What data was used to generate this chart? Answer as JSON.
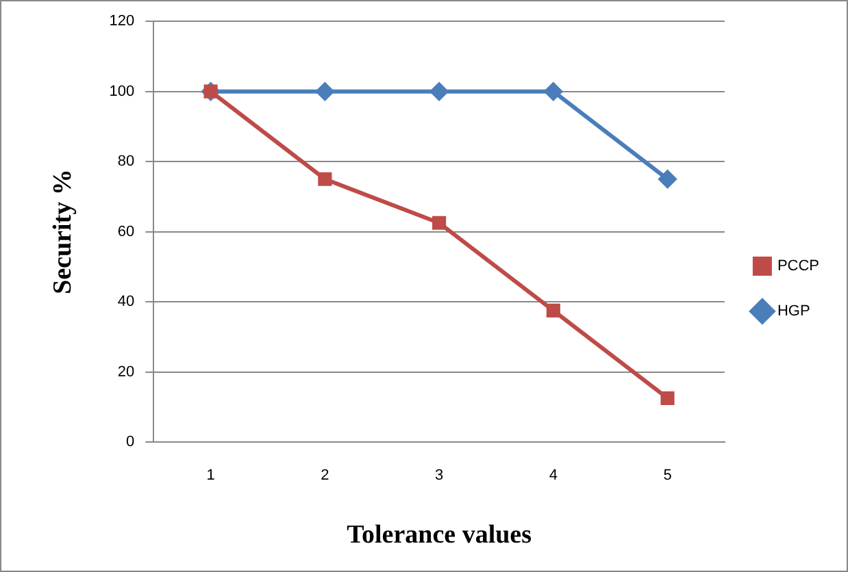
{
  "chart_data": {
    "type": "line",
    "xlabel": "Tolerance values",
    "ylabel": "Security %",
    "categories": [
      "1",
      "2",
      "3",
      "4",
      "5"
    ],
    "series": [
      {
        "name": "HGP",
        "color": "#4a7ebb",
        "marker": "diamond",
        "values": [
          100,
          100,
          100,
          100,
          75
        ]
      },
      {
        "name": "PCCP",
        "color": "#be4b48",
        "marker": "square",
        "values": [
          100,
          75,
          62.5,
          37.5,
          12.5
        ]
      }
    ],
    "ylim": [
      0,
      120
    ],
    "yticks": [
      0,
      20,
      40,
      60,
      80,
      100,
      120
    ],
    "grid": "y",
    "legend": "right"
  }
}
